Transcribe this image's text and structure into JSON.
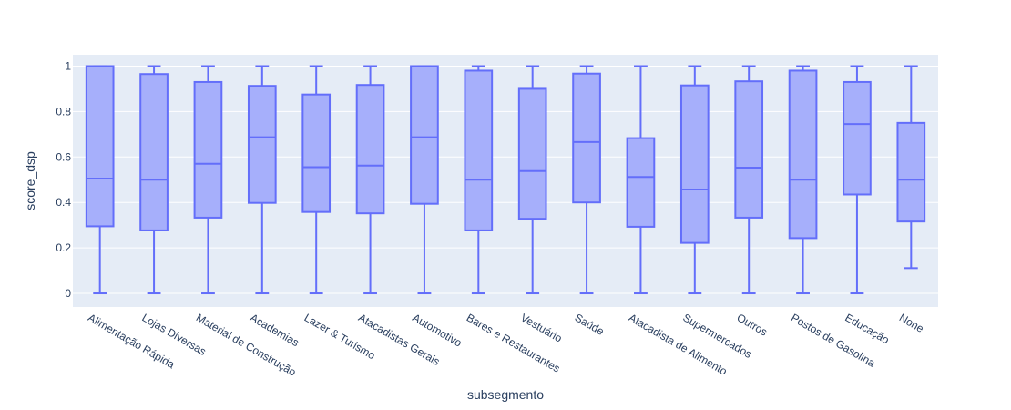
{
  "chart_data": {
    "type": "box",
    "xlabel": "subsegmento",
    "ylabel": "score_dsp",
    "ylim": [
      -0.06,
      1.05
    ],
    "yticks": [
      0,
      0.2,
      0.4,
      0.6,
      0.8,
      1
    ],
    "ytick_labels": [
      "0",
      "0.2",
      "0.4",
      "0.6",
      "0.8",
      "1"
    ],
    "grid": true,
    "colors": {
      "box_fill": "#a6affb",
      "box_line": "#636efa",
      "plot_bg": "#e5ecf6",
      "grid": "#ffffff",
      "text": "#2a3f5f"
    },
    "categories": [
      "Alimentação Rápida",
      "Lojas Diversas",
      "Material de Construção",
      "Academias",
      "Lazer & Turismo",
      "Atacadistas Gerais",
      "Automotivo",
      "Bares e Restaurantes",
      "Vestuário",
      "Saúde",
      "Atacadista de Alimento",
      "Supermercados",
      "Outros",
      "Postos de Gasolina",
      "Educação",
      "None"
    ],
    "boxes": [
      {
        "min": 0,
        "q1": 0.295,
        "median": 0.505,
        "q3": 1.0,
        "max": 1.0
      },
      {
        "min": 0,
        "q1": 0.277,
        "median": 0.5,
        "q3": 0.965,
        "max": 1.0
      },
      {
        "min": 0,
        "q1": 0.333,
        "median": 0.57,
        "q3": 0.93,
        "max": 1.0
      },
      {
        "min": 0,
        "q1": 0.398,
        "median": 0.687,
        "q3": 0.913,
        "max": 1.0
      },
      {
        "min": 0,
        "q1": 0.358,
        "median": 0.555,
        "q3": 0.875,
        "max": 1.0
      },
      {
        "min": 0,
        "q1": 0.352,
        "median": 0.562,
        "q3": 0.917,
        "max": 1.0
      },
      {
        "min": 0,
        "q1": 0.394,
        "median": 0.687,
        "q3": 1.0,
        "max": 1.0
      },
      {
        "min": 0,
        "q1": 0.277,
        "median": 0.5,
        "q3": 0.98,
        "max": 1.0
      },
      {
        "min": 0,
        "q1": 0.328,
        "median": 0.538,
        "q3": 0.9,
        "max": 1.0
      },
      {
        "min": 0,
        "q1": 0.4,
        "median": 0.666,
        "q3": 0.967,
        "max": 1.0
      },
      {
        "min": 0,
        "q1": 0.293,
        "median": 0.512,
        "q3": 0.683,
        "max": 1.0
      },
      {
        "min": 0,
        "q1": 0.222,
        "median": 0.457,
        "q3": 0.915,
        "max": 1.0
      },
      {
        "min": 0,
        "q1": 0.333,
        "median": 0.553,
        "q3": 0.933,
        "max": 1.0
      },
      {
        "min": 0,
        "q1": 0.243,
        "median": 0.5,
        "q3": 0.98,
        "max": 1.0
      },
      {
        "min": 0,
        "q1": 0.435,
        "median": 0.745,
        "q3": 0.93,
        "max": 1.0
      },
      {
        "min": 0.111,
        "q1": 0.316,
        "median": 0.5,
        "q3": 0.75,
        "max": 1.0
      }
    ]
  }
}
